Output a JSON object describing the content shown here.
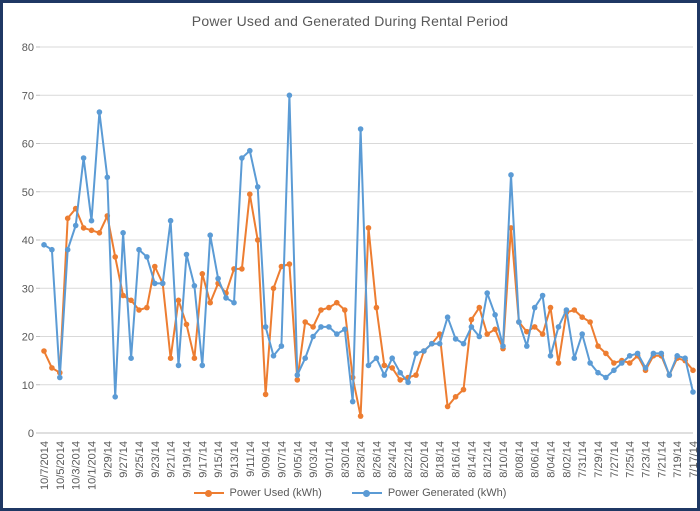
{
  "chart_data": {
    "type": "line",
    "title": "Power Used and Generated During Rental Period",
    "xlabel": "",
    "ylabel": "",
    "ylim": [
      0,
      80
    ],
    "y_ticks": [
      0,
      10,
      20,
      30,
      40,
      50,
      60,
      70,
      80
    ],
    "grid": true,
    "legend_position": "bottom",
    "points_per_label": 2,
    "x_tick_labels": [
      "10/7/2014",
      "10/5/2014",
      "10/3/2014",
      "10/1/2014",
      "9/29/14",
      "9/27/14",
      "9/25/14",
      "9/23/14",
      "9/21/14",
      "9/19/14",
      "9/17/14",
      "9/15/14",
      "9/13/14",
      "9/11/14",
      "9/09/14",
      "9/07/14",
      "9/05/14",
      "9/03/14",
      "9/01/14",
      "8/30/14",
      "8/28/14",
      "8/26/14",
      "8/24/14",
      "8/22/14",
      "8/20/14",
      "8/18/14",
      "8/16/14",
      "8/14/14",
      "8/12/14",
      "8/10/14",
      "8/08/14",
      "8/06/14",
      "8/04/14",
      "8/02/14",
      "7/31/14",
      "7/29/14",
      "7/27/14",
      "7/25/14",
      "7/23/14",
      "7/21/14",
      "7/19/14",
      "7/17/14"
    ],
    "series": [
      {
        "name": "Power Used (kWh)",
        "color": "#ED7D31",
        "values": [
          17,
          13.5,
          12.5,
          44.5,
          46.5,
          42.5,
          42,
          41.5,
          45,
          36.5,
          28.5,
          27.5,
          25.5,
          26,
          34.5,
          31,
          15.5,
          27.5,
          22.5,
          15.5,
          33,
          27,
          31,
          29,
          34,
          34,
          49.5,
          40,
          8,
          30,
          34.5,
          35,
          11,
          23,
          22,
          25.5,
          26,
          27,
          25.5,
          11.5,
          3.5,
          42.5,
          26,
          14,
          13.5,
          11,
          11.5,
          12,
          17,
          18.5,
          20.5,
          5.5,
          7.5,
          9,
          23.5,
          26,
          20.5,
          21.5,
          17.5,
          42.5,
          23,
          21,
          22,
          20.5,
          26,
          14.5,
          25,
          25.5,
          24,
          23,
          18,
          16.5,
          14.5,
          15,
          14.5,
          16,
          13,
          16,
          16,
          12,
          15.5,
          15,
          13
        ]
      },
      {
        "name": "Power Generated (kWh)",
        "color": "#5B9BD5",
        "values": [
          39,
          38,
          11.5,
          38,
          43,
          57,
          44,
          66.5,
          53,
          7.5,
          41.5,
          15.5,
          38,
          36.5,
          31,
          31,
          44,
          14,
          37,
          30.5,
          14,
          41,
          32,
          28,
          27,
          57,
          58.5,
          51,
          22,
          16,
          18,
          70,
          12,
          15.5,
          20,
          22,
          22,
          20.5,
          21.5,
          6.5,
          63,
          14,
          15.5,
          12,
          15.5,
          12.5,
          10.5,
          16.5,
          17,
          18.5,
          18.5,
          24,
          19.5,
          18.5,
          22,
          20,
          29,
          24.5,
          18,
          53.5,
          23,
          18,
          26,
          28.5,
          16,
          22,
          25.5,
          15.5,
          20.5,
          14.5,
          12.5,
          11.5,
          13,
          14.5,
          16,
          16.5,
          13.5,
          16.5,
          16.5,
          12,
          16,
          15.5,
          8.5
        ]
      }
    ],
    "style": {
      "gridline_color": "#D9D9D9",
      "axis_color": "#BFBFBF",
      "tick_label_color": "#595959",
      "border_color": "#1F3864"
    }
  }
}
